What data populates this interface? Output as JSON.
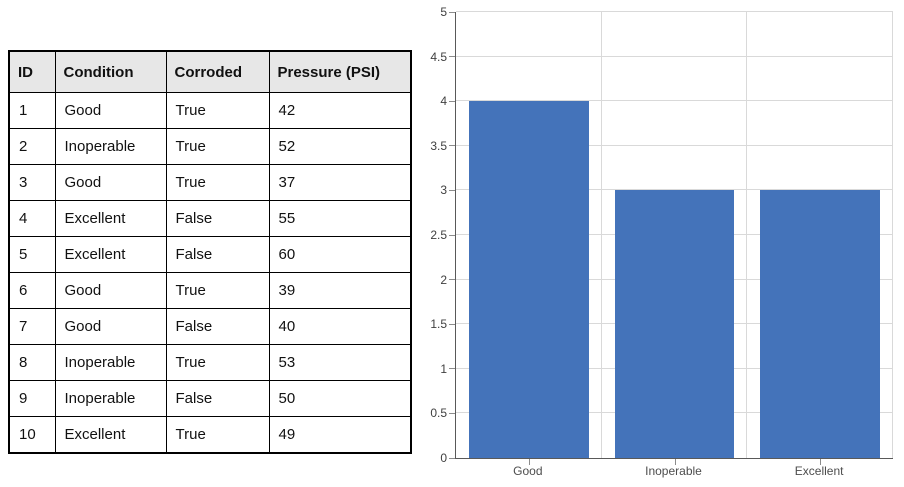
{
  "table": {
    "headers": [
      "ID",
      "Condition",
      "Corroded",
      "Pressure (PSI)"
    ],
    "rows": [
      [
        "1",
        "Good",
        "True",
        "42"
      ],
      [
        "2",
        "Inoperable",
        "True",
        "52"
      ],
      [
        "3",
        "Good",
        "True",
        "37"
      ],
      [
        "4",
        "Excellent",
        "False",
        "55"
      ],
      [
        "5",
        "Excellent",
        "False",
        "60"
      ],
      [
        "6",
        "Good",
        "True",
        "39"
      ],
      [
        "7",
        "Good",
        "False",
        "40"
      ],
      [
        "8",
        "Inoperable",
        "True",
        "53"
      ],
      [
        "9",
        "Inoperable",
        "False",
        "50"
      ],
      [
        "10",
        "Excellent",
        "True",
        "49"
      ]
    ],
    "header_bg": "#e7e7e7",
    "border_color": "#000000"
  },
  "chart_data": {
    "type": "bar",
    "categories": [
      "Good",
      "Inoperable",
      "Excellent"
    ],
    "values": [
      4,
      3,
      3
    ],
    "title": "",
    "xlabel": "",
    "ylabel": "",
    "ylim": [
      0,
      5
    ],
    "ytick_step": 0.5,
    "yticks": [
      0,
      0.5,
      1,
      1.5,
      2,
      2.5,
      3,
      3.5,
      4,
      4.5,
      5
    ],
    "grid": "both",
    "legend_position": "none",
    "bar_color": "#4473ba",
    "gridline_color": "#d9d9d9",
    "axis_color": "#595959",
    "tick_color": "#8c8c8c"
  }
}
